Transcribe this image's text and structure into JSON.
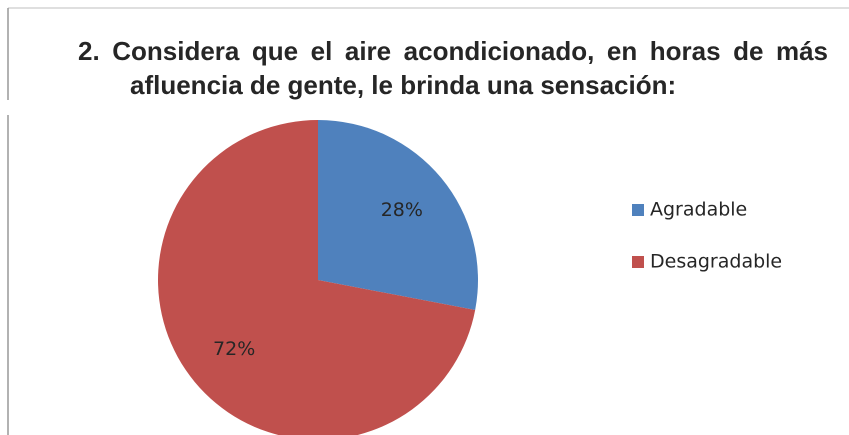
{
  "chart_data": {
    "type": "pie",
    "title": "2. Considera que el aire acondicionado, en horas de más afluencia de gente, le brinda una sensación:",
    "categories": [
      "Agradable",
      "Desagradable"
    ],
    "values": [
      28,
      72
    ],
    "value_labels": [
      "28%",
      "72%"
    ],
    "colors": [
      "#4f81bd",
      "#c0504d"
    ],
    "legend": "right"
  }
}
